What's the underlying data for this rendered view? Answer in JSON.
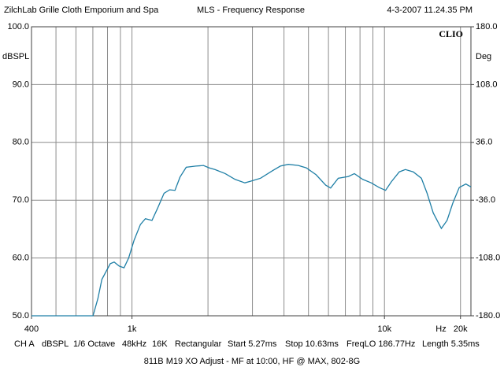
{
  "chart_data": {
    "type": "line",
    "title": "MLS - Frequency Response",
    "header_left": "ZilchLab Grille Cloth Emporium and Spa",
    "header_right": "4-3-2007 11.24.35 PM",
    "logo": "CLIO",
    "y_label": "dBSPL",
    "y2_label": "Deg",
    "x_unit": "Hz",
    "x_log": true,
    "grid": true,
    "xlim": [
      400,
      22000
    ],
    "xticks": [
      {
        "value": 400,
        "label": "400"
      },
      {
        "value": 1000,
        "label": "1k"
      },
      {
        "value": 10000,
        "label": "10k"
      },
      {
        "value": 20000,
        "label": "20k"
      }
    ],
    "xgrid": [
      500,
      600,
      700,
      800,
      900,
      1000,
      2000,
      3000,
      4000,
      5000,
      6000,
      7000,
      8000,
      9000,
      10000,
      20000
    ],
    "ylim": [
      50,
      100
    ],
    "yticks": [
      {
        "value": 50,
        "label": "50.0"
      },
      {
        "value": 60,
        "label": "60.0"
      },
      {
        "value": 70,
        "label": "70.0"
      },
      {
        "value": 80,
        "label": "80.0"
      },
      {
        "value": 90,
        "label": "90.0"
      },
      {
        "value": 100,
        "label": "100.0"
      }
    ],
    "y2lim": [
      -180,
      180
    ],
    "y2ticks": [
      {
        "value": -180,
        "label": "-180.0"
      },
      {
        "value": -108,
        "label": "-108.0"
      },
      {
        "value": -36,
        "label": "-36.0"
      },
      {
        "value": 36,
        "label": "36.0"
      },
      {
        "value": 108,
        "label": "108.0"
      },
      {
        "value": 180,
        "label": "180.0"
      }
    ],
    "x": [
      400,
      701,
      733,
      760,
      820,
      850,
      890,
      930,
      970,
      1020,
      1080,
      1130,
      1200,
      1260,
      1340,
      1410,
      1480,
      1550,
      1640,
      1790,
      1920,
      2020,
      2130,
      2340,
      2560,
      2800,
      2960,
      3230,
      3600,
      3870,
      4160,
      4560,
      4900,
      5360,
      5850,
      6120,
      6560,
      7200,
      7600,
      8200,
      8860,
      9520,
      10100,
      10650,
      11450,
      12100,
      13000,
      14000,
      14750,
      15600,
      16800,
      17700,
      18650,
      19780,
      21000,
      22000
    ],
    "series": [
      {
        "name": "dBSPL",
        "color": "#1f7fa6",
        "values": [
          50,
          50,
          53,
          56.3,
          59.0,
          59.3,
          58.6,
          58.3,
          60,
          63.1,
          65.8,
          66.8,
          66.5,
          68.5,
          71.2,
          71.8,
          71.7,
          74,
          75.7,
          75.9,
          76.0,
          75.6,
          75.3,
          74.6,
          73.6,
          73,
          73.3,
          73.8,
          75.1,
          75.9,
          76.2,
          76.0,
          75.6,
          74.4,
          72.6,
          72.1,
          73.8,
          74.1,
          74.6,
          73.6,
          73,
          72.2,
          71.7,
          73.2,
          74.9,
          75.3,
          74.9,
          73.8,
          71.2,
          67.8,
          65.1,
          66.5,
          69.5,
          72.2,
          72.8,
          72.3
        ]
      }
    ],
    "footer": [
      "CH A",
      "dBSPL",
      "1/6 Octave",
      "48kHz",
      "16K",
      "Rectangular",
      "Start 5.27ms",
      "Stop 10.63ms",
      "FreqLO 186.77Hz",
      "Length 5.35ms"
    ],
    "caption": "811B M19 XO Adjust - MF at 10:00, HF @ MAX, 802-8G"
  }
}
